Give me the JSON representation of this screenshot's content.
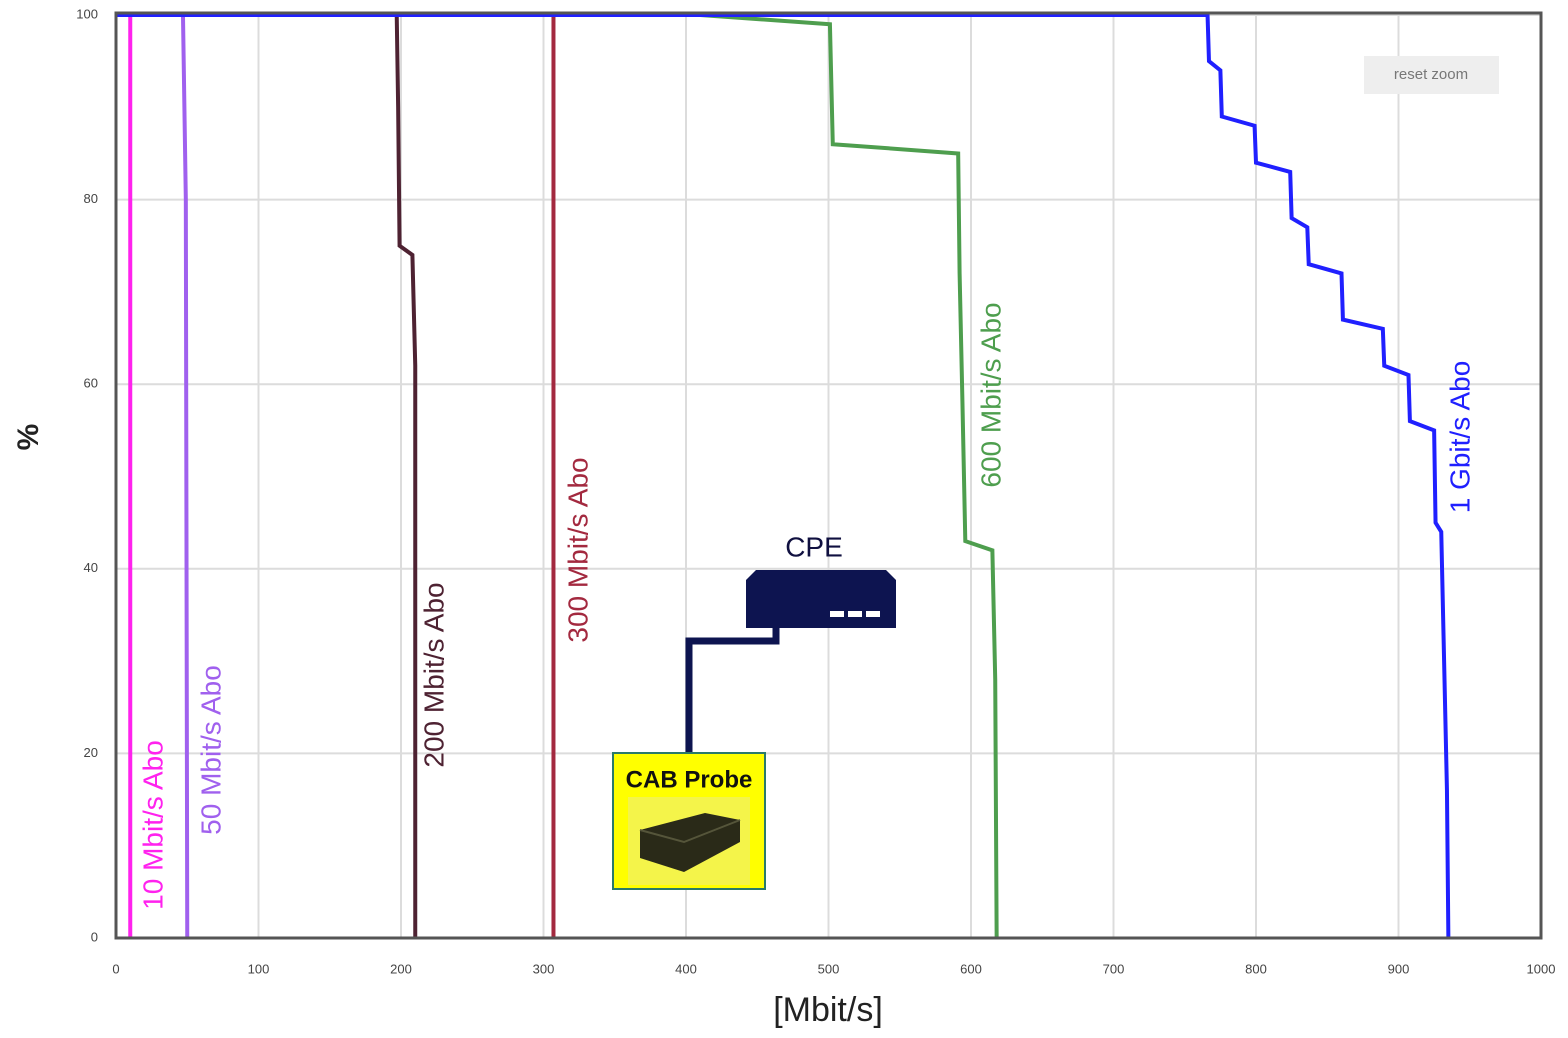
{
  "chart_data": {
    "type": "line",
    "x_label": "[Mbit/s]",
    "y_label": "%",
    "xlim": [
      0,
      1000
    ],
    "ylim": [
      0,
      100
    ],
    "xticks": [
      0,
      100,
      200,
      300,
      400,
      500,
      600,
      700,
      800,
      900,
      1000
    ],
    "yticks": [
      0,
      20,
      40,
      60,
      80,
      100
    ],
    "grid": true,
    "series": [
      {
        "name": "10 Mbit/s Abo",
        "color": "#ff22ee",
        "x": [
          0,
          10,
          10
        ],
        "values": [
          100,
          100,
          0
        ]
      },
      {
        "name": "50 Mbit/s Abo",
        "color": "#a060ee",
        "x": [
          0,
          47,
          49,
          50
        ],
        "values": [
          100,
          100,
          80,
          0
        ]
      },
      {
        "name": "200 Mbit/s Abo",
        "color": "#4e2232",
        "x": [
          0,
          197,
          198,
          199,
          208,
          210,
          210
        ],
        "values": [
          100,
          100,
          90,
          75,
          74,
          62,
          0
        ]
      },
      {
        "name": "300 Mbit/s Abo",
        "color": "#a3293f",
        "x": [
          0,
          307,
          307
        ],
        "values": [
          100,
          100,
          0
        ]
      },
      {
        "name": "600 Mbit/s Abo",
        "color": "#4e9e4e",
        "x": [
          0,
          410,
          501,
          503,
          591,
          592,
          594,
          596,
          615,
          617,
          618
        ],
        "values": [
          100,
          100,
          99,
          86,
          85,
          72,
          58,
          43,
          42,
          28,
          0
        ]
      },
      {
        "name": "1 Gbit/s Abo",
        "color": "#2020ff",
        "x": [
          0,
          766,
          767,
          775,
          776,
          799,
          800,
          824,
          825,
          836,
          837,
          860,
          861,
          889,
          890,
          907,
          908,
          925,
          926,
          930,
          932,
          934,
          935
        ],
        "values": [
          100,
          100,
          95,
          94,
          89,
          88,
          84,
          83,
          78,
          77,
          73,
          72,
          67,
          66,
          62,
          61,
          56,
          55,
          45,
          44,
          30,
          16,
          0
        ]
      }
    ]
  },
  "annotations": {
    "cpe": "CPE",
    "probe": "CAB Probe",
    "reset_zoom": "reset zoom"
  }
}
